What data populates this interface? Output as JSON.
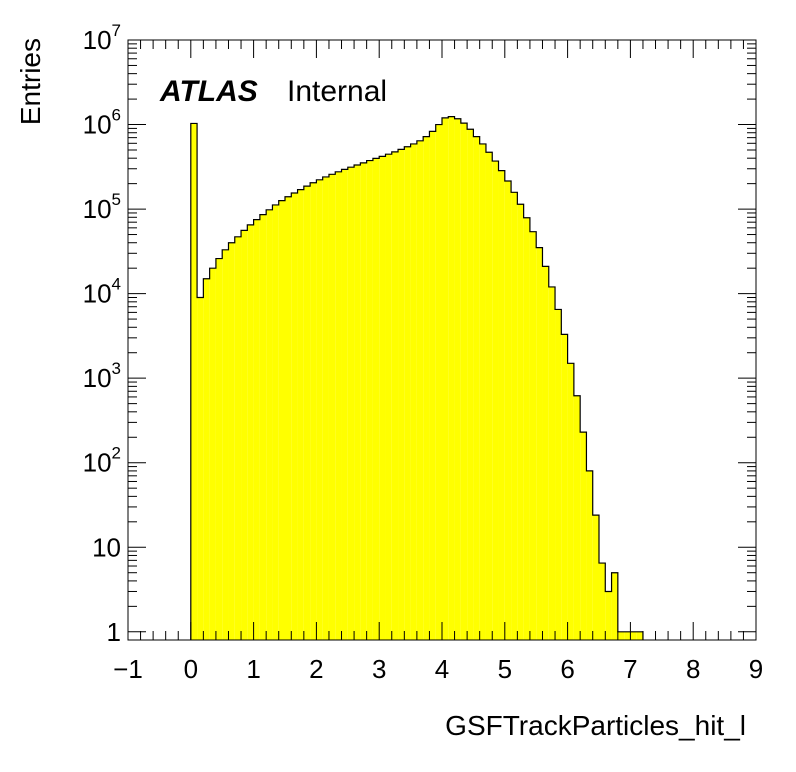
{
  "chart_data": {
    "type": "bar",
    "title": "",
    "xlabel": "GSFTrackParticles_hit_l",
    "ylabel": "Entries",
    "annotation": {
      "experiment": "ATLAS",
      "status": "Internal"
    },
    "xlim": [
      -1,
      9
    ],
    "ylim": [
      0.8,
      10000000
    ],
    "yscale": "log",
    "fill_color": "#ffff00",
    "line_color": "#000000",
    "grid": false,
    "x_ticks": [
      "−1",
      "0",
      "1",
      "2",
      "3",
      "4",
      "5",
      "6",
      "7",
      "8",
      "9"
    ],
    "y_ticks": [
      {
        "value": 1,
        "base": "1",
        "exp": ""
      },
      {
        "value": 10,
        "base": "10",
        "exp": ""
      },
      {
        "value": 100,
        "base": "10",
        "exp": "2"
      },
      {
        "value": 1000,
        "base": "10",
        "exp": "3"
      },
      {
        "value": 10000,
        "base": "10",
        "exp": "4"
      },
      {
        "value": 100000,
        "base": "10",
        "exp": "5"
      },
      {
        "value": 1000000,
        "base": "10",
        "exp": "6"
      },
      {
        "value": 10000000,
        "base": "10",
        "exp": "7"
      }
    ],
    "bin_width": 0.1,
    "bins_start": 0.0,
    "values": [
      1030000,
      9000,
      15000,
      20000,
      26000,
      33000,
      40000,
      47000,
      56000,
      65000,
      75000,
      86000,
      98000,
      112000,
      126000,
      140000,
      155000,
      170000,
      187000,
      205000,
      222000,
      240000,
      258000,
      276000,
      295000,
      313000,
      332000,
      352000,
      375000,
      398000,
      420000,
      446000,
      475000,
      508000,
      546000,
      590000,
      642000,
      720000,
      830000,
      1000000,
      1200000,
      1240000,
      1170000,
      1040000,
      880000,
      720000,
      590000,
      470000,
      370000,
      285000,
      215000,
      158000,
      114000,
      79000,
      54000,
      35000,
      21000,
      12000,
      6500,
      3300,
      1500,
      620,
      230,
      80,
      24,
      6.5,
      3,
      5,
      1,
      1,
      1,
      1
    ]
  }
}
